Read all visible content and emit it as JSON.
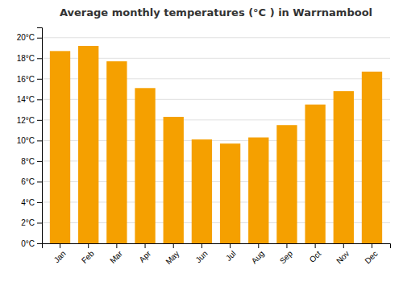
{
  "chart_data": {
    "type": "bar",
    "title": "Average monthly temperatures (°C ) in Warrnambool",
    "categories": [
      "Jan",
      "Feb",
      "Mar",
      "Apr",
      "May",
      "Jun",
      "Jul",
      "Aug",
      "Sep",
      "Oct",
      "Nov",
      "Dec"
    ],
    "values": [
      18.7,
      19.2,
      17.7,
      15.1,
      12.3,
      10.1,
      9.7,
      10.3,
      11.5,
      13.5,
      14.8,
      16.7
    ],
    "color": "#F5A000",
    "ylim": [
      0,
      21
    ],
    "yticks": [
      {
        "value": 0,
        "label": "0°C"
      },
      {
        "value": 2,
        "label": "2°C"
      },
      {
        "value": 4,
        "label": "4°C"
      },
      {
        "value": 6,
        "label": "6°C"
      },
      {
        "value": 8,
        "label": "8°C"
      },
      {
        "value": 10,
        "label": "10°C"
      },
      {
        "value": 12,
        "label": "12°C"
      },
      {
        "value": 14,
        "label": "14°C"
      },
      {
        "value": 16,
        "label": "16°C"
      },
      {
        "value": 18,
        "label": "18°C"
      },
      {
        "value": 20,
        "label": "20°C"
      }
    ],
    "grid": true
  }
}
